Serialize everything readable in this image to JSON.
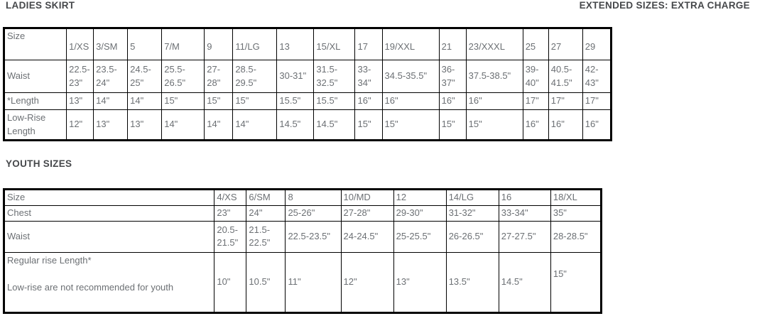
{
  "headings": {
    "ladies": "LADIES SKIRT",
    "extended_note": "EXTENDED SIZES: EXTRA CHARGE",
    "youth": "YOUTH SIZES"
  },
  "ladies_table": {
    "columns": [
      "Size",
      "1/XS",
      "3/SM",
      "5",
      "7/M",
      "9",
      "11/LG",
      "13",
      "15/XL",
      "17",
      "19/XXL",
      "21",
      "23/XXXL",
      "25",
      "27",
      "29"
    ],
    "rows": [
      {
        "label": "Waist",
        "values": [
          "22.5-23\"",
          "23.5-24\"",
          "24.5-25\"",
          "25.5-26.5\"",
          "27-28\"",
          "28.5-29.5\"",
          "30-31\"",
          "31.5-32.5\"",
          "33-34\"",
          "34.5-35.5\"",
          "36-37\"",
          "37.5-38.5\"",
          "39-40\"",
          "40.5-41.5\"",
          "42-43\""
        ]
      },
      {
        "label": "*Length",
        "values": [
          "13\"",
          "14\"",
          "14\"",
          "15\"",
          "15\"",
          "15\"",
          "15.5\"",
          "15.5\"",
          "16\"",
          "16\"",
          "16\"",
          "16\"",
          "17\"",
          "17\"",
          "17\""
        ]
      },
      {
        "label": "Low-Rise Length",
        "values": [
          "12\"",
          "13\"",
          "13\"",
          "14\"",
          "14\"",
          "14\"",
          "14.5\"",
          "14.5\"",
          "15\"",
          "15\"",
          "15\"",
          "15\"",
          "16\"",
          "16\"",
          "16\""
        ]
      }
    ]
  },
  "youth_table": {
    "columns": [
      "Size",
      "4/XS",
      "6/SM",
      "8",
      "10/MD",
      "12",
      "14/LG",
      "16",
      "18/XL"
    ],
    "rows": [
      {
        "label": "Chest",
        "values": [
          "23\"",
          "24\"",
          "25-26\"",
          "27-28\"",
          "29-30\"",
          "31-32\"",
          "33-34\"",
          "35\""
        ]
      },
      {
        "label": "Waist",
        "values": [
          "20.5-21.5\"",
          "21.5-22.5\"",
          "22.5-23.5\"",
          "24-24.5\"",
          "25-25.5\"",
          "26-26.5\"",
          "27-27.5\"",
          "28-28.5\""
        ]
      },
      {
        "label": "Regular rise Length*\n\nLow-rise are not recommended for youth",
        "values": [
          "10\"",
          "10.5\"",
          "11\"",
          "12\"",
          "13\"",
          "13.5\"",
          "14.5\"",
          "15\""
        ]
      }
    ]
  }
}
